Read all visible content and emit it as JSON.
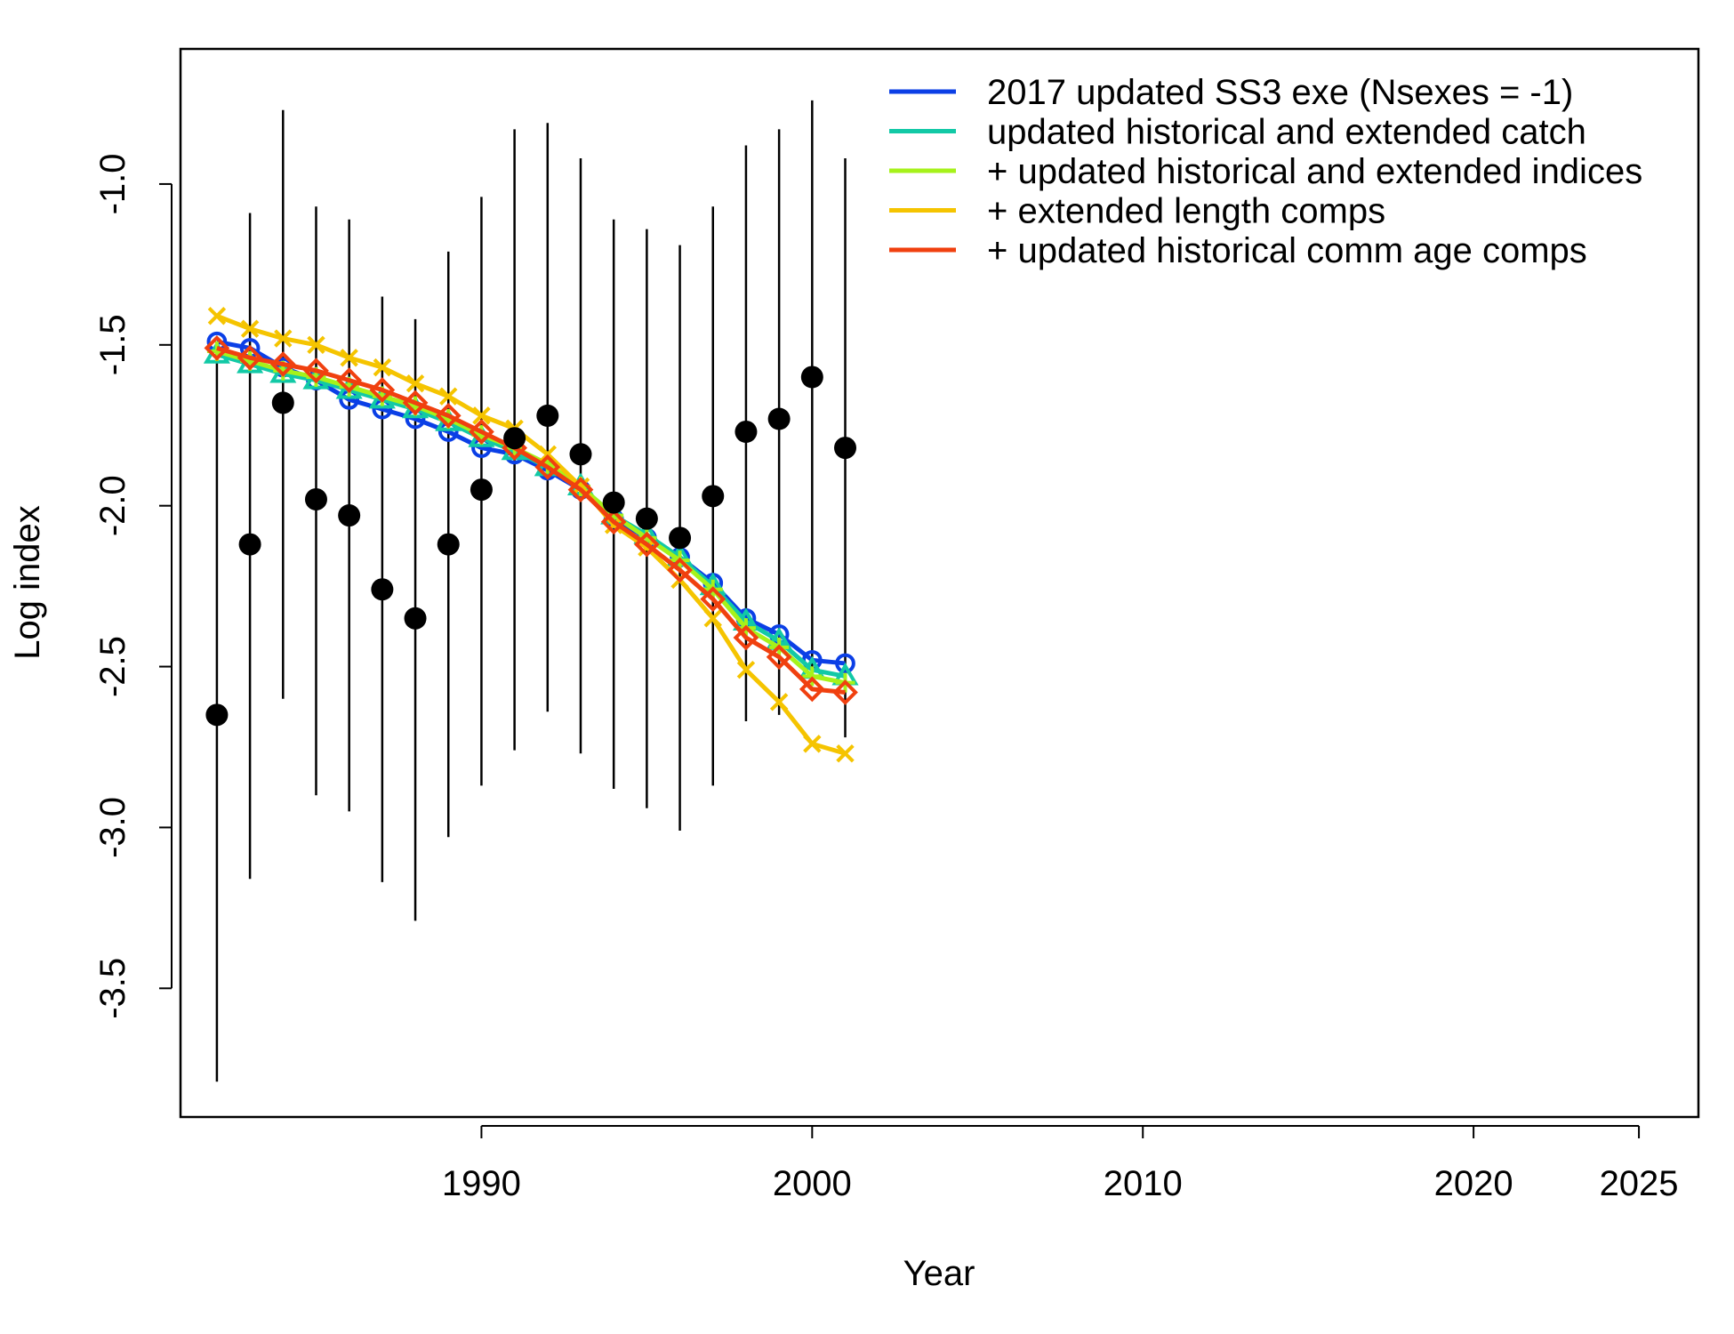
{
  "chart_data": {
    "type": "line",
    "title": "",
    "xlabel": "Year",
    "ylabel": "Log index",
    "xlim": [
      1980.9,
      2026.8
    ],
    "ylim": [
      -3.9,
      -0.58
    ],
    "x_ticks": [
      1990,
      2000,
      2010,
      2020,
      2025
    ],
    "x_tick_labels": [
      "1990",
      "2000",
      "2010",
      "2020",
      "2025"
    ],
    "y_ticks": [
      -1.0,
      -1.5,
      -2.0,
      -2.5,
      -3.0,
      -3.5
    ],
    "y_tick_labels": [
      "-1.0",
      "-1.5",
      "-2.0",
      "-2.5",
      "-3.0",
      "-3.5"
    ],
    "grid": false,
    "legend_position": "top-right",
    "x": [
      1982,
      1983,
      1984,
      1985,
      1986,
      1987,
      1988,
      1989,
      1990,
      1991,
      1992,
      1993,
      1994,
      1995,
      1996,
      1997,
      1998,
      1999,
      2000,
      2001
    ],
    "observed": {
      "values": [
        -2.65,
        -2.12,
        -1.68,
        -1.98,
        -2.03,
        -2.26,
        -2.35,
        -2.12,
        -1.95,
        -1.79,
        -1.72,
        -1.84,
        -1.99,
        -2.04,
        -2.1,
        -1.97,
        -1.77,
        -1.73,
        -1.6,
        -1.82
      ],
      "lower": [
        -3.79,
        -3.16,
        -2.6,
        -2.9,
        -2.95,
        -3.17,
        -3.29,
        -3.03,
        -2.87,
        -2.76,
        -2.64,
        -2.77,
        -2.88,
        -2.94,
        -3.01,
        -2.87,
        -2.67,
        -2.65,
        -2.53,
        -2.72
      ],
      "upper": [
        -1.51,
        -1.09,
        -0.77,
        -1.07,
        -1.11,
        -1.35,
        -1.42,
        -1.21,
        -1.04,
        -0.83,
        -0.81,
        -0.92,
        -1.11,
        -1.14,
        -1.19,
        -1.07,
        -0.88,
        -0.83,
        -0.74,
        -0.92
      ],
      "color": "#000000"
    },
    "series": [
      {
        "name": "2017 updated SS3 exe (Nsexes = -1)",
        "color": "#0B3FE6",
        "marker": "circle",
        "values": [
          -1.49,
          -1.51,
          -1.57,
          -1.61,
          -1.67,
          -1.7,
          -1.73,
          -1.77,
          -1.82,
          -1.84,
          -1.89,
          -1.95,
          -2.04,
          -2.1,
          -2.16,
          -2.24,
          -2.35,
          -2.4,
          -2.48,
          -2.49
        ]
      },
      {
        "name": "updated historical and extended catch",
        "color": "#12C9A6",
        "marker": "triangle",
        "values": [
          -1.53,
          -1.56,
          -1.59,
          -1.61,
          -1.64,
          -1.67,
          -1.7,
          -1.74,
          -1.79,
          -1.83,
          -1.88,
          -1.94,
          -2.03,
          -2.09,
          -2.16,
          -2.25,
          -2.36,
          -2.42,
          -2.51,
          -2.53
        ]
      },
      {
        "name": "+ updated historical and extended indices",
        "color": "#A6F21A",
        "marker": "plus",
        "values": [
          -1.52,
          -1.55,
          -1.58,
          -1.6,
          -1.63,
          -1.66,
          -1.69,
          -1.73,
          -1.78,
          -1.82,
          -1.87,
          -1.94,
          -2.03,
          -2.1,
          -2.17,
          -2.26,
          -2.38,
          -2.44,
          -2.53,
          -2.55
        ]
      },
      {
        "name": "+ extended length comps",
        "color": "#F5C400",
        "marker": "x",
        "values": [
          -1.41,
          -1.45,
          -1.48,
          -1.5,
          -1.54,
          -1.57,
          -1.62,
          -1.66,
          -1.72,
          -1.76,
          -1.84,
          -1.94,
          -2.06,
          -2.13,
          -2.23,
          -2.35,
          -2.51,
          -2.61,
          -2.74,
          -2.77
        ]
      },
      {
        "name": "+ updated historical comm age comps",
        "color": "#F0400F",
        "marker": "diamond",
        "values": [
          -1.51,
          -1.54,
          -1.56,
          -1.58,
          -1.61,
          -1.64,
          -1.68,
          -1.72,
          -1.77,
          -1.82,
          -1.88,
          -1.95,
          -2.05,
          -2.12,
          -2.2,
          -2.29,
          -2.41,
          -2.47,
          -2.57,
          -2.58
        ]
      }
    ]
  }
}
